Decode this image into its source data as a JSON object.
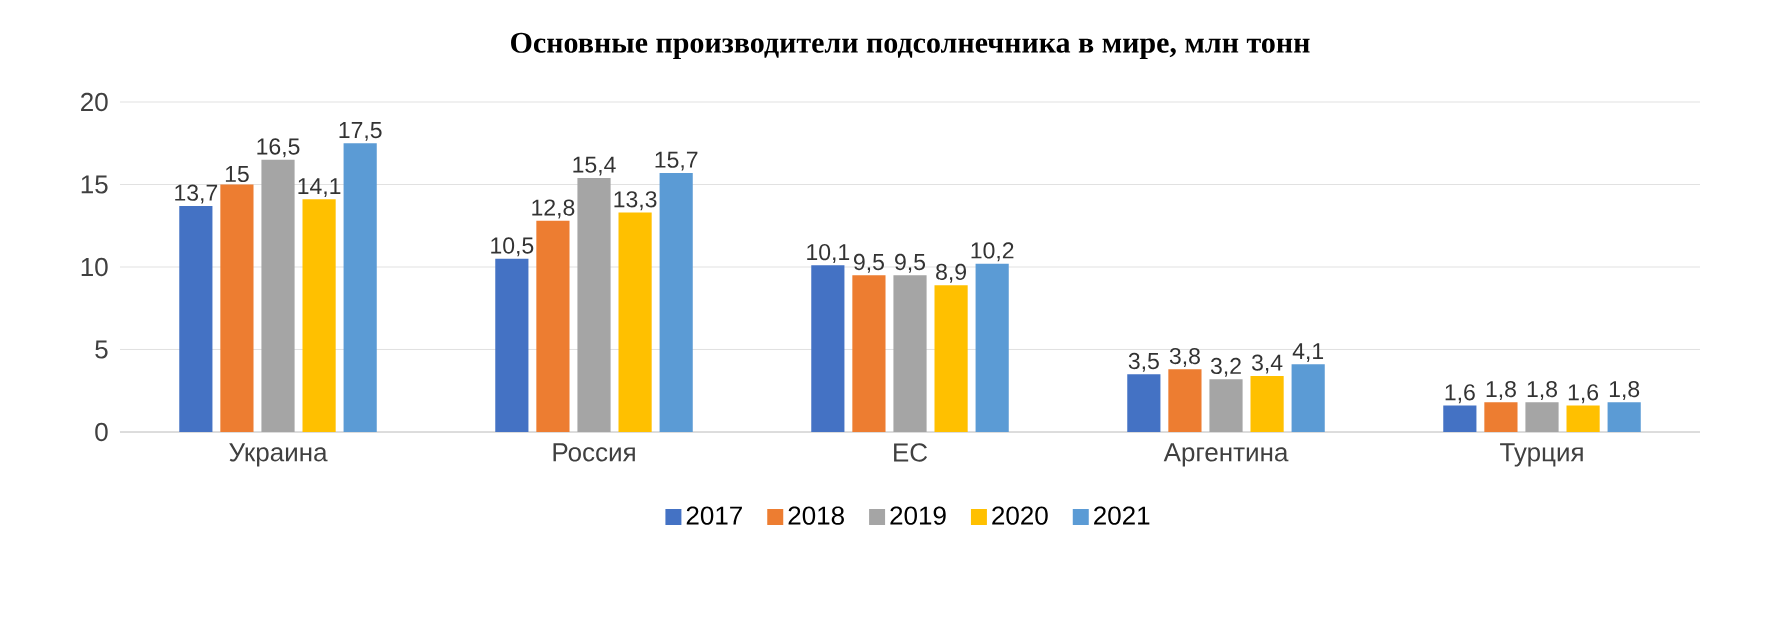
{
  "chart_data": {
    "type": "bar",
    "title": "Основные производители подсолнечника в мире, млн тонн",
    "categories": [
      "Украина",
      "Россия",
      "ЕС",
      "Аргентина",
      "Турция"
    ],
    "series": [
      {
        "name": "2017",
        "color": "#4472c4",
        "values": [
          13.7,
          10.5,
          10.1,
          3.5,
          1.6
        ],
        "value_labels": [
          "13,7",
          "10,5",
          "10,1",
          "3,5",
          "1,6"
        ]
      },
      {
        "name": "2018",
        "color": "#ed7d31",
        "values": [
          15,
          12.8,
          9.5,
          3.8,
          1.8
        ],
        "value_labels": [
          "15",
          "12,8",
          "9,5",
          "3,8",
          "1,8"
        ]
      },
      {
        "name": "2019",
        "color": "#a5a5a5",
        "values": [
          16.5,
          15.4,
          9.5,
          3.2,
          1.8
        ],
        "value_labels": [
          "16,5",
          "15,4",
          "9,5",
          "3,2",
          "1,8"
        ]
      },
      {
        "name": "2020",
        "color": "#ffc000",
        "values": [
          14.1,
          13.3,
          8.9,
          3.4,
          1.6
        ],
        "value_labels": [
          "14,1",
          "13,3",
          "8,9",
          "3,4",
          "1,6"
        ]
      },
      {
        "name": "2021",
        "color": "#5b9bd5",
        "values": [
          17.5,
          15.7,
          10.2,
          4.1,
          1.8
        ],
        "value_labels": [
          "17,5",
          "15,7",
          "10,2",
          "4,1",
          "1,8"
        ]
      }
    ],
    "ylim": [
      0,
      20
    ],
    "yticks": [
      0,
      5,
      10,
      15,
      20
    ],
    "grid": "y",
    "legend": "bottom"
  }
}
